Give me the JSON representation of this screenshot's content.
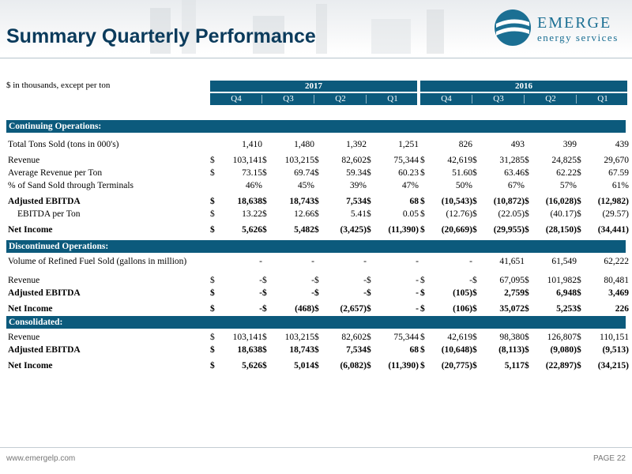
{
  "title": "Summary Quarterly Performance",
  "logo": {
    "name": "EMERGE",
    "tagline": "energy services"
  },
  "units_note": "$ in thousands, except per ton",
  "years": [
    "2017",
    "2016"
  ],
  "quarters": [
    "Q4",
    "Q3",
    "Q2",
    "Q1",
    "Q4",
    "Q3",
    "Q2",
    "Q1"
  ],
  "sections": [
    {
      "title": "Continuing Operations:",
      "rows": [
        {
          "label": "Total Tons Sold (tons in 000's)",
          "bold": false,
          "indent": false,
          "currency": false,
          "values": [
            "1,410",
            "1,480",
            "1,392",
            "1,251",
            "826",
            "493",
            "399",
            "439"
          ]
        },
        {
          "label": "Revenue",
          "bold": false,
          "indent": false,
          "currency": true,
          "values": [
            "103,141",
            "103,215",
            "82,602",
            "75,344",
            "42,619",
            "31,285",
            "24,825",
            "29,670"
          ]
        },
        {
          "label": "Average Revenue per Ton",
          "bold": false,
          "indent": false,
          "currency": true,
          "values": [
            "73.15",
            "69.74",
            "59.34",
            "60.23",
            "51.60",
            "63.46",
            "62.22",
            "67.59"
          ]
        },
        {
          "label": "% of Sand Sold through Terminals",
          "bold": false,
          "indent": false,
          "currency": false,
          "values": [
            "46%",
            "45%",
            "39%",
            "47%",
            "50%",
            "67%",
            "57%",
            "61%"
          ]
        },
        {
          "label": "Adjusted EBITDA",
          "bold": true,
          "indent": false,
          "currency": true,
          "values": [
            "18,638",
            "18,743",
            "7,534",
            "68",
            "(10,543)",
            "(10,872)",
            "(16,028)",
            "(12,982)"
          ]
        },
        {
          "label": "EBITDA per Ton",
          "bold": false,
          "indent": true,
          "currency": true,
          "values": [
            "13.22",
            "12.66",
            "5.41",
            "0.05",
            "(12.76)",
            "(22.05)",
            "(40.17)",
            "(29.57)"
          ]
        },
        {
          "label": "Net Income",
          "bold": true,
          "indent": false,
          "currency": true,
          "values": [
            "5,626",
            "5,482",
            "(3,425)",
            "(11,390)",
            "(20,669)",
            "(29,955)",
            "(28,150)",
            "(34,441)"
          ]
        }
      ]
    },
    {
      "title": "Discontinued Operations:",
      "rows": [
        {
          "label": "Volume of Refined Fuel Sold (gallons in million)",
          "bold": false,
          "indent": false,
          "currency": false,
          "values": [
            "-",
            "-",
            "-",
            "-",
            "-",
            "41,651",
            "61,549",
            "62,222"
          ]
        },
        {
          "label": "Revenue",
          "bold": false,
          "indent": false,
          "currency": true,
          "values": [
            "-",
            "-",
            "-",
            "-",
            "-",
            "67,095",
            "101,982",
            "80,481"
          ]
        },
        {
          "label": "Adjusted EBITDA",
          "bold": true,
          "indent": false,
          "currency": true,
          "values": [
            "-",
            "-",
            "-",
            "-",
            "(105)",
            "2,759",
            "6,948",
            "3,469"
          ]
        },
        {
          "label": "Net Income",
          "bold": true,
          "indent": false,
          "currency": true,
          "values": [
            "-",
            "(468)",
            "(2,657)",
            "-",
            "(106)",
            "35,072",
            "5,253",
            "226"
          ]
        }
      ]
    },
    {
      "title": "Consolidated:",
      "rows": [
        {
          "label": "Revenue",
          "bold": false,
          "indent": false,
          "currency": true,
          "values": [
            "103,141",
            "103,215",
            "82,602",
            "75,344",
            "42,619",
            "98,380",
            "126,807",
            "110,151"
          ]
        },
        {
          "label": "Adjusted EBITDA",
          "bold": true,
          "indent": false,
          "currency": true,
          "values": [
            "18,638",
            "18,743",
            "7,534",
            "68",
            "(10,648)",
            "(8,113)",
            "(9,080)",
            "(9,513)"
          ]
        },
        {
          "label": "Net Income",
          "bold": true,
          "indent": false,
          "currency": true,
          "values": [
            "5,626",
            "5,014",
            "(6,082)",
            "(11,390)",
            "(20,775)",
            "5,117",
            "(22,897)",
            "(34,215)"
          ]
        }
      ]
    }
  ],
  "currency_symbol": "$",
  "footer": {
    "url": "www.emergelp.com",
    "page": "PAGE 22"
  },
  "colors": {
    "header_band": "#0c5a7c",
    "title": "#0b3b5c",
    "logo": "#1b6f93"
  },
  "icons": {
    "logo_emblem": "globe-swoosh-icon"
  }
}
